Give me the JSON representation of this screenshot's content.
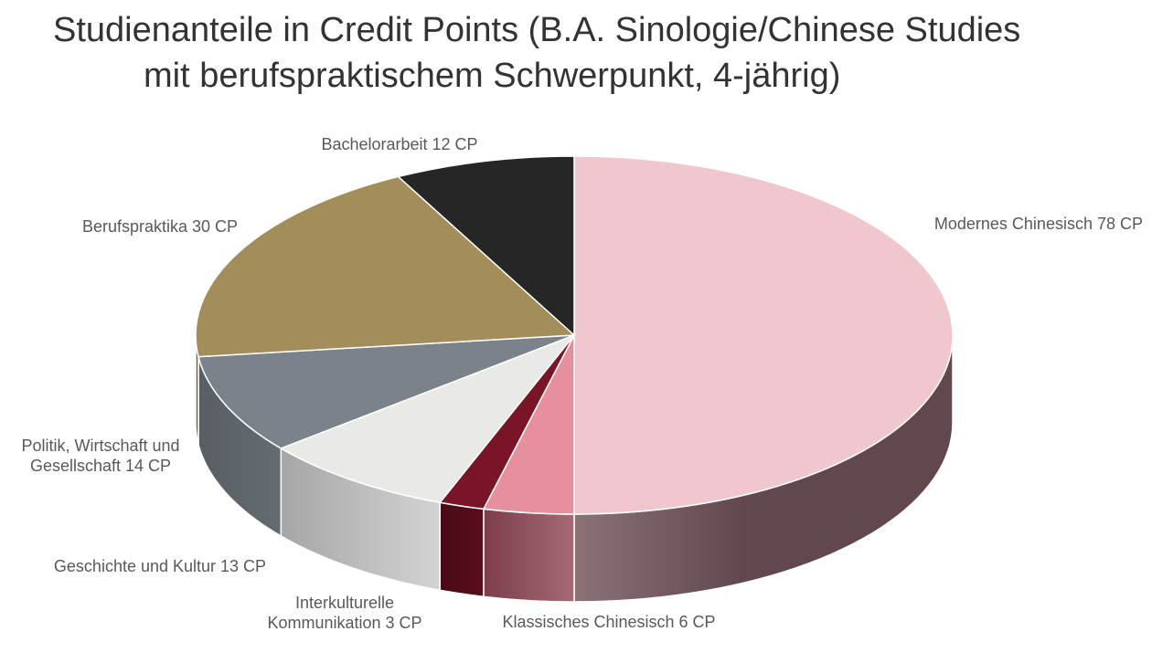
{
  "chart_data": {
    "type": "pie",
    "style": "3d",
    "title_lines": [
      "Studienanteile in Credit Points (B.A. Sinologie/Chinese Studies",
      "mit berufspraktischem  Schwerpunkt, 4-jährig)"
    ],
    "unit": "CP",
    "slices": [
      {
        "label_lines": [
          "Modernes Chinesisch 78 CP"
        ],
        "value": 78,
        "top_color": "#f0c7cf",
        "side_colors": [
          "#8a7276",
          "#62484d"
        ]
      },
      {
        "label_lines": [
          "Klassisches Chinesisch 6 CP"
        ],
        "value": 6,
        "top_color": "#e68f9f",
        "side_colors": [
          "#a56a76",
          "#7b3e4a"
        ]
      },
      {
        "label_lines": [
          "Interkulturelle",
          "Kommunikation 3 CP"
        ],
        "value": 3,
        "top_color": "#7a1428",
        "side_colors": [
          "#5a0d1c",
          "#4a0a16"
        ]
      },
      {
        "label_lines": [
          "Geschichte und Kultur 13 CP"
        ],
        "value": 13,
        "top_color": "#e9eae8",
        "side_colors": [
          "#d2d3d2",
          "#a5a6a5"
        ]
      },
      {
        "label_lines": [
          "Politik, Wirtschaft und",
          "Gesellschaft 14 CP"
        ],
        "value": 14,
        "top_color": "#7b828a",
        "side_colors": [
          "#646b71",
          "#585e64"
        ]
      },
      {
        "label_lines": [
          "Berufspraktika 30 CP"
        ],
        "value": 30,
        "top_color": "#a28d5b",
        "side_colors": [
          "#806f47",
          "#6b5c3a"
        ]
      },
      {
        "label_lines": [
          "Bachelorarbeit 12 CP"
        ],
        "value": 12,
        "top_color": "#262626",
        "side_colors": [
          "#1a1a1a",
          "#111111"
        ]
      }
    ]
  }
}
